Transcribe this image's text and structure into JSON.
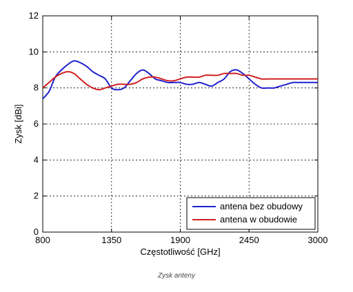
{
  "caption": "Zysk anteny",
  "chart_data": {
    "type": "line",
    "title": "",
    "xlabel": "Częstotliwość [GHz]",
    "ylabel": "Zysk [dBi]",
    "xlim": [
      800,
      3000
    ],
    "ylim": [
      0,
      12
    ],
    "xticks": [
      800,
      1350,
      1900,
      2450,
      3000
    ],
    "yticks": [
      0,
      2,
      4,
      6,
      8,
      10,
      12
    ],
    "grid": true,
    "legend_position": "bottom-right",
    "series": [
      {
        "name": "antena bez obudowy",
        "color": "#1f1fd0",
        "x": [
          800,
          850,
          900,
          950,
          1000,
          1050,
          1100,
          1150,
          1200,
          1250,
          1300,
          1350,
          1400,
          1450,
          1500,
          1550,
          1600,
          1650,
          1700,
          1750,
          1800,
          1850,
          1900,
          1950,
          2000,
          2050,
          2100,
          2150,
          2200,
          2250,
          2300,
          2350,
          2400,
          2450,
          2500,
          2550,
          2600,
          2650,
          2700,
          2750,
          2800,
          2850,
          2900,
          2950,
          3000
        ],
        "y": [
          7.4,
          7.8,
          8.6,
          9.0,
          9.3,
          9.5,
          9.4,
          9.2,
          8.9,
          8.7,
          8.5,
          8.0,
          7.9,
          8.0,
          8.4,
          8.8,
          9.0,
          8.8,
          8.5,
          8.4,
          8.3,
          8.3,
          8.3,
          8.2,
          8.2,
          8.3,
          8.2,
          8.1,
          8.3,
          8.5,
          8.9,
          9.0,
          8.8,
          8.5,
          8.2,
          8.0,
          8.0,
          8.0,
          8.1,
          8.2,
          8.3,
          8.3,
          8.3,
          8.3,
          8.3
        ]
      },
      {
        "name": "antena w obudowie",
        "color": "#d01f1f",
        "x": [
          800,
          850,
          900,
          950,
          1000,
          1050,
          1100,
          1150,
          1200,
          1250,
          1300,
          1350,
          1400,
          1450,
          1500,
          1550,
          1600,
          1650,
          1700,
          1750,
          1800,
          1850,
          1900,
          1950,
          2000,
          2050,
          2100,
          2150,
          2200,
          2250,
          2300,
          2350,
          2400,
          2450,
          2500,
          2550,
          2600,
          2650,
          2700,
          2750,
          2800,
          2850,
          2900,
          2950,
          3000
        ],
        "y": [
          8.0,
          8.3,
          8.6,
          8.8,
          8.9,
          8.8,
          8.5,
          8.2,
          8.0,
          7.9,
          8.0,
          8.1,
          8.2,
          8.2,
          8.2,
          8.3,
          8.5,
          8.6,
          8.6,
          8.5,
          8.4,
          8.4,
          8.5,
          8.6,
          8.6,
          8.6,
          8.7,
          8.7,
          8.7,
          8.8,
          8.8,
          8.8,
          8.7,
          8.7,
          8.6,
          8.5,
          8.5,
          8.5,
          8.5,
          8.5,
          8.5,
          8.5,
          8.5,
          8.5,
          8.5
        ]
      }
    ]
  }
}
